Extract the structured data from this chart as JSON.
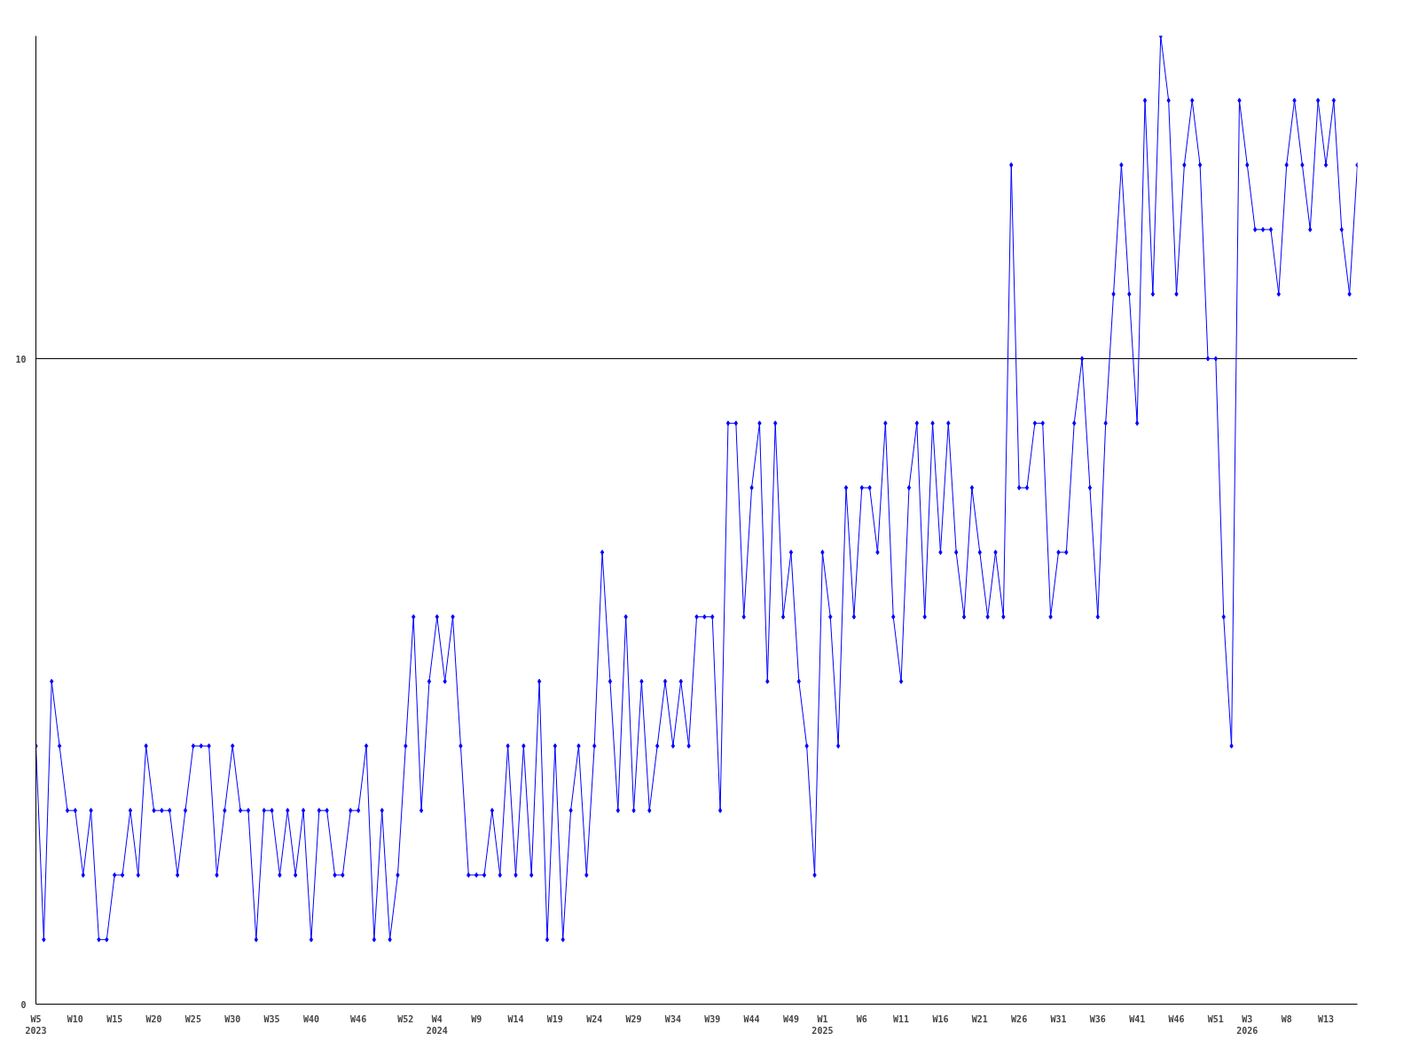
{
  "chart_data": {
    "type": "line",
    "categories": [
      "W5\n2023",
      null,
      null,
      null,
      null,
      "W10",
      null,
      null,
      null,
      null,
      "W15",
      null,
      null,
      null,
      null,
      "W20",
      null,
      null,
      null,
      null,
      "W25",
      null,
      null,
      null,
      null,
      "W30",
      null,
      null,
      null,
      null,
      "W35",
      null,
      null,
      null,
      null,
      "W40",
      null,
      null,
      null,
      null,
      null,
      "W46",
      null,
      null,
      null,
      null,
      null,
      "W52",
      null,
      null,
      null,
      "W4\n2024",
      null,
      null,
      null,
      null,
      "W9",
      null,
      null,
      null,
      null,
      "W14",
      null,
      null,
      null,
      null,
      "W19",
      null,
      null,
      null,
      null,
      "W24",
      null,
      null,
      null,
      null,
      "W29",
      null,
      null,
      null,
      null,
      "W34",
      null,
      null,
      null,
      null,
      "W39",
      null,
      null,
      null,
      null,
      "W44",
      null,
      null,
      null,
      null,
      "W49",
      null,
      null,
      null,
      "W1\n2025",
      null,
      null,
      null,
      null,
      "W6",
      null,
      null,
      null,
      null,
      "W11",
      null,
      null,
      null,
      null,
      "W16",
      null,
      null,
      null,
      null,
      "W21",
      null,
      null,
      null,
      null,
      "W26",
      null,
      null,
      null,
      null,
      "W31",
      null,
      null,
      null,
      null,
      "W36",
      null,
      null,
      null,
      null,
      "W41",
      null,
      null,
      null,
      null,
      "W46",
      null,
      null,
      null,
      null,
      "W51",
      null,
      null,
      null,
      "W3\n2026",
      null,
      null,
      null,
      null,
      "W8",
      null,
      null,
      null,
      null,
      "W13",
      null,
      null,
      null,
      null
    ],
    "series": [
      {
        "color": "#0000ff",
        "values": [
          4,
          1,
          5,
          4,
          3,
          3,
          2,
          3,
          1,
          1,
          2,
          2,
          3,
          2,
          4,
          3,
          3,
          3,
          2,
          3,
          4,
          4,
          4,
          2,
          3,
          4,
          3,
          3,
          1,
          3,
          3,
          2,
          3,
          2,
          3,
          1,
          3,
          3,
          2,
          2,
          3,
          3,
          4,
          1,
          3,
          1,
          2,
          4,
          6,
          3,
          5,
          6,
          5,
          6,
          4,
          2,
          2,
          2,
          3,
          2,
          4,
          2,
          4,
          2,
          5,
          1,
          4,
          1,
          3,
          4,
          2,
          4,
          7,
          5,
          3,
          6,
          3,
          5,
          3,
          4,
          5,
          4,
          5,
          4,
          6,
          6,
          6,
          3,
          9,
          9,
          6,
          8,
          9,
          5,
          9,
          6,
          7,
          5,
          4,
          2,
          7,
          6,
          4,
          8,
          6,
          8,
          8,
          7,
          9,
          6,
          5,
          8,
          9,
          6,
          9,
          7,
          9,
          7,
          6,
          8,
          7,
          6,
          7,
          6,
          13,
          8,
          8,
          9,
          9,
          6,
          7,
          7,
          9,
          10,
          8,
          6,
          9,
          11,
          13,
          11,
          9,
          14,
          11,
          15,
          14,
          11,
          13,
          14,
          13,
          10,
          10,
          6,
          4,
          14,
          13,
          12,
          12,
          12,
          11,
          13,
          14,
          13,
          12,
          14,
          13,
          14,
          12,
          11,
          13
        ]
      }
    ],
    "ylim": [
      0,
      15
    ],
    "yticks": [
      0,
      10
    ],
    "grid": "y",
    "marker": "diamond",
    "line_style": "solid"
  }
}
